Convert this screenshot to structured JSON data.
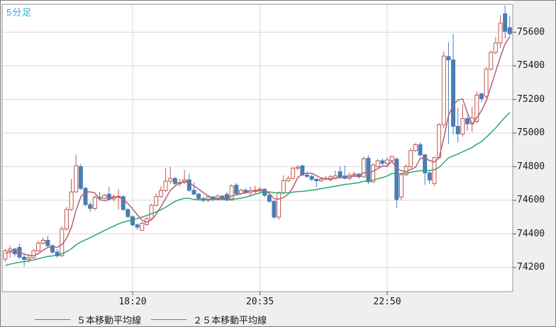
{
  "title": "5分足",
  "colors": {
    "title": "#29abe2",
    "up_border": "#c0564b",
    "up_fill": "#ffffff",
    "down_fill": "#4a7cb5",
    "down_border": "#4a7cb5",
    "ma5": "#b05f7d",
    "ma25": "#2ea56c",
    "grid": "#d9d9d9",
    "plot_border": "#8c8c8c",
    "tick": "#555555",
    "panel_bg": "#efefef",
    "label": "#1a1a1a"
  },
  "legend": {
    "items": [
      {
        "label": "５本移動平均線",
        "period": 5,
        "color": "#b05f7d"
      },
      {
        "label": "２５本移動平均線",
        "period": 25,
        "color": "#2ea56c"
      }
    ]
  },
  "chart_data": {
    "type": "candlestick",
    "timeframe_label": "5分足",
    "y_axis": {
      "ticks": [
        75600,
        75400,
        75200,
        75000,
        74800,
        74600,
        74400,
        74200
      ],
      "ylim": [
        74060,
        75770
      ],
      "position": "right"
    },
    "x_axis": {
      "ticks": [
        {
          "label": "18:20",
          "candle_index": 27
        },
        {
          "label": "20:35",
          "candle_index": 54
        },
        {
          "label": "22:50",
          "candle_index": 81
        }
      ]
    },
    "moving_averages": [
      {
        "period": 5,
        "color": "#b05f7d"
      },
      {
        "period": 25,
        "color": "#2ea56c"
      }
    ],
    "prehistory_closes": [
      74120,
      74128,
      74136,
      74144,
      74152,
      74160,
      74168,
      74176,
      74184,
      74192,
      74200,
      74208,
      74215,
      74222,
      74229,
      74236,
      74243,
      74250,
      74257,
      74264,
      74271,
      74278,
      74285,
      74292
    ],
    "candles_ohlc": [
      [
        74250,
        74310,
        74235,
        74300
      ],
      [
        74300,
        74330,
        74260,
        74310
      ],
      [
        74310,
        74318,
        74265,
        74282
      ],
      [
        74320,
        74340,
        74250,
        74262
      ],
      [
        74262,
        74280,
        74205,
        74248
      ],
      [
        74248,
        74280,
        74230,
        74258
      ],
      [
        74258,
        74310,
        74252,
        74300
      ],
      [
        74300,
        74360,
        74295,
        74345
      ],
      [
        74345,
        74380,
        74338,
        74362
      ],
      [
        74362,
        74390,
        74320,
        74330
      ],
      [
        74330,
        74340,
        74280,
        74292
      ],
      [
        74292,
        74310,
        74258,
        74270
      ],
      [
        74270,
        74445,
        74265,
        74430
      ],
      [
        74430,
        74560,
        74420,
        74545
      ],
      [
        74545,
        74727,
        74538,
        74650
      ],
      [
        74650,
        74871,
        74645,
        74805
      ],
      [
        74801,
        74815,
        74660,
        74671
      ],
      [
        74671,
        74680,
        74565,
        74574
      ],
      [
        74574,
        74590,
        74532,
        74552
      ],
      [
        74552,
        74630,
        74540,
        74618
      ],
      [
        74618,
        74650,
        74598,
        74612
      ],
      [
        74612,
        74640,
        74604,
        74630
      ],
      [
        74637,
        74679,
        74600,
        74608
      ],
      [
        74608,
        74635,
        74594,
        74622
      ],
      [
        74620,
        74664,
        74545,
        74624
      ],
      [
        74622,
        74630,
        74538,
        74545
      ],
      [
        74545,
        74552,
        74495,
        74503
      ],
      [
        74503,
        74510,
        74445,
        74454
      ],
      [
        74454,
        74462,
        74424,
        74440
      ],
      [
        74421,
        74470,
        74419,
        74463
      ],
      [
        74456,
        74500,
        74450,
        74491
      ],
      [
        74491,
        74580,
        74485,
        74570
      ],
      [
        74570,
        74640,
        74564,
        74622
      ],
      [
        74622,
        74685,
        74615,
        74658
      ],
      [
        74658,
        74791,
        74650,
        74714
      ],
      [
        74714,
        74798,
        74698,
        74730
      ],
      [
        74730,
        74740,
        74688,
        74700
      ],
      [
        74700,
        74726,
        74684,
        74706
      ],
      [
        74706,
        74780,
        74698,
        74722
      ],
      [
        74722,
        74760,
        74650,
        74660
      ],
      [
        74660,
        74705,
        74630,
        74637
      ],
      [
        74637,
        74645,
        74598,
        74610
      ],
      [
        74610,
        74622,
        74588,
        74600
      ],
      [
        74600,
        74632,
        74590,
        74620
      ],
      [
        74620,
        74626,
        74594,
        74604
      ],
      [
        74604,
        74636,
        74598,
        74625
      ],
      [
        74625,
        74632,
        74598,
        74610
      ],
      [
        74635,
        74650,
        74596,
        74601
      ],
      [
        74601,
        74695,
        74598,
        74685
      ],
      [
        74690,
        74702,
        74632,
        74640
      ],
      [
        74640,
        74668,
        74634,
        74660
      ],
      [
        74660,
        74672,
        74636,
        74645
      ],
      [
        74645,
        74682,
        74624,
        74656
      ],
      [
        74656,
        74686,
        74640,
        74661
      ],
      [
        74661,
        74680,
        74648,
        74666
      ],
      [
        74666,
        74672,
        74618,
        74630
      ],
      [
        74630,
        74640,
        74584,
        74594
      ],
      [
        74594,
        74600,
        74490,
        74500
      ],
      [
        74500,
        74652,
        74484,
        74643
      ],
      [
        74643,
        74748,
        74636,
        74716
      ],
      [
        74716,
        74746,
        74708,
        74730
      ],
      [
        74730,
        74800,
        74724,
        74790
      ],
      [
        74790,
        74810,
        74778,
        74797
      ],
      [
        74805,
        74812,
        74744,
        74750
      ],
      [
        74750,
        74770,
        74734,
        74742
      ],
      [
        74742,
        74752,
        74714,
        74725
      ],
      [
        74725,
        74732,
        74679,
        74716
      ],
      [
        74716,
        74736,
        74708,
        74726
      ],
      [
        74726,
        74746,
        74718,
        74731
      ],
      [
        74722,
        74752,
        74714,
        74740
      ],
      [
        74731,
        74776,
        74724,
        74745
      ],
      [
        74770,
        74800,
        74728,
        74736
      ],
      [
        74745,
        74806,
        74724,
        74731
      ],
      [
        74731,
        74766,
        74718,
        74750
      ],
      [
        74750,
        74770,
        74738,
        74756
      ],
      [
        74756,
        74762,
        74728,
        74740
      ],
      [
        74740,
        74861,
        74734,
        74847
      ],
      [
        74850,
        74868,
        74698,
        74710
      ],
      [
        74710,
        74820,
        74704,
        74810
      ],
      [
        74800,
        74845,
        74794,
        74835
      ],
      [
        74835,
        74850,
        74808,
        74820
      ],
      [
        74820,
        74856,
        74798,
        74840
      ],
      [
        74836,
        74868,
        74828,
        74860
      ],
      [
        74845,
        74855,
        74552,
        74605
      ],
      [
        74620,
        74762,
        74600,
        74752
      ],
      [
        74752,
        74815,
        74744,
        74800
      ],
      [
        74800,
        74910,
        74790,
        74896
      ],
      [
        74896,
        74940,
        74888,
        74931
      ],
      [
        74931,
        74945,
        74860,
        74870
      ],
      [
        74870,
        74876,
        74693,
        74763
      ],
      [
        74763,
        74772,
        74698,
        74721
      ],
      [
        74700,
        74860,
        74686,
        74854
      ],
      [
        74854,
        75060,
        74846,
        75050
      ],
      [
        75050,
        75486,
        75028,
        75458
      ],
      [
        75455,
        75540,
        74935,
        75435
      ],
      [
        75435,
        75590,
        74992,
        75040
      ],
      [
        75040,
        75150,
        74944,
        74995
      ],
      [
        74995,
        75170,
        74978,
        75086
      ],
      [
        75086,
        75107,
        75014,
        75055
      ],
      [
        75055,
        75156,
        75008,
        75090
      ],
      [
        75070,
        75247,
        75058,
        75226
      ],
      [
        75233,
        75242,
        75184,
        75205
      ],
      [
        75219,
        75392,
        75208,
        75380
      ],
      [
        75380,
        75490,
        75372,
        75480
      ],
      [
        75480,
        75571,
        75468,
        75536
      ],
      [
        75536,
        75700,
        75506,
        75654
      ],
      [
        75710,
        75760,
        75563,
        75605
      ],
      [
        75627,
        75698,
        75576,
        75591
      ]
    ]
  }
}
